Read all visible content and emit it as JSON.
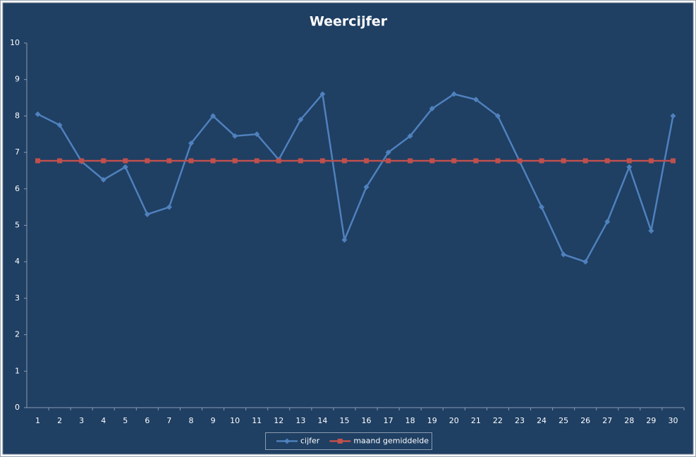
{
  "chart_data": {
    "type": "line",
    "title": "Weercijfer",
    "categories": [
      1,
      2,
      3,
      4,
      5,
      6,
      7,
      8,
      9,
      10,
      11,
      12,
      13,
      14,
      15,
      16,
      17,
      18,
      19,
      20,
      21,
      22,
      23,
      24,
      25,
      26,
      27,
      28,
      29,
      30
    ],
    "series": [
      {
        "name": "cijfer",
        "color": "#4f81bd",
        "marker": "diamond",
        "values": [
          8.05,
          7.75,
          6.75,
          6.25,
          6.6,
          5.3,
          5.5,
          7.25,
          8.0,
          7.45,
          7.5,
          6.8,
          7.9,
          8.6,
          4.6,
          6.05,
          7.0,
          7.45,
          8.2,
          8.6,
          8.45,
          8.0,
          6.75,
          5.5,
          4.2,
          4.0,
          5.1,
          6.6,
          4.85,
          8.0
        ]
      },
      {
        "name": "maand gemiddelde",
        "color": "#c0504d",
        "marker": "square",
        "values": [
          6.77,
          6.77,
          6.77,
          6.77,
          6.77,
          6.77,
          6.77,
          6.77,
          6.77,
          6.77,
          6.77,
          6.77,
          6.77,
          6.77,
          6.77,
          6.77,
          6.77,
          6.77,
          6.77,
          6.77,
          6.77,
          6.77,
          6.77,
          6.77,
          6.77,
          6.77,
          6.77,
          6.77,
          6.77,
          6.77
        ]
      }
    ],
    "ylim": [
      0,
      10
    ],
    "yticks": [
      0,
      1,
      2,
      3,
      4,
      5,
      6,
      7,
      8,
      9,
      10
    ],
    "grid": false,
    "legend": "bottom"
  }
}
